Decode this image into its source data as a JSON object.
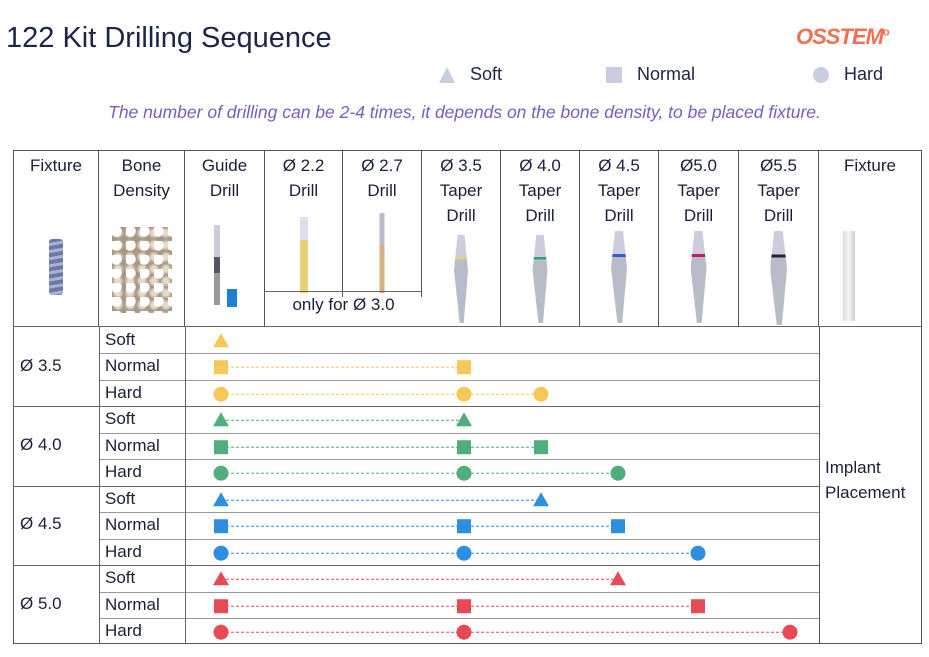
{
  "title": "122 Kit Drilling Sequence",
  "logo": "OSSTEM",
  "legend": [
    {
      "shape": "triangle",
      "label": "Soft"
    },
    {
      "shape": "square",
      "label": "Normal"
    },
    {
      "shape": "circle",
      "label": "Hard"
    }
  ],
  "legend_color": "#c8cde0",
  "note": "The number of drilling can be 2-4 times, it depends on the bone density, to be placed fixture.",
  "header": {
    "fixture": "Fixture",
    "bone": [
      "Bone",
      "Density"
    ],
    "guide": [
      "Guide",
      "Drill"
    ],
    "d22": [
      "Ø 2.2",
      "Drill"
    ],
    "d27": [
      "Ø 2.7",
      "Drill"
    ],
    "only": "only for Ø 3.0",
    "d35": [
      "Ø 3.5",
      "Taper",
      "Drill"
    ],
    "d40": [
      "Ø 4.0",
      "Taper",
      "Drill"
    ],
    "d45": [
      "Ø 4.5",
      "Taper",
      "Drill"
    ],
    "d50": [
      "Ø5.0",
      "Taper",
      "Drill"
    ],
    "d55": [
      "Ø5.5",
      "Taper",
      "Drill"
    ],
    "fixture2": "Fixture"
  },
  "placement": [
    "Implant",
    "Placement"
  ],
  "groups": [
    {
      "label": "Ø 3.5",
      "color": "#f6c85a",
      "rows": [
        {
          "density": "Soft",
          "drills": [
            "guide"
          ]
        },
        {
          "density": "Normal",
          "drills": [
            "guide",
            "3.5"
          ]
        },
        {
          "density": "Hard",
          "drills": [
            "guide",
            "3.5",
            "4.0"
          ]
        }
      ]
    },
    {
      "label": "Ø 4.0",
      "color": "#4fae7c",
      "rows": [
        {
          "density": "Soft",
          "drills": [
            "guide",
            "3.5"
          ]
        },
        {
          "density": "Normal",
          "drills": [
            "guide",
            "3.5",
            "4.0"
          ]
        },
        {
          "density": "Hard",
          "drills": [
            "guide",
            "3.5",
            "4.5"
          ]
        }
      ]
    },
    {
      "label": "Ø 4.5",
      "color": "#2e8ee0",
      "rows": [
        {
          "density": "Soft",
          "drills": [
            "guide",
            "4.0"
          ]
        },
        {
          "density": "Normal",
          "drills": [
            "guide",
            "3.5",
            "4.5"
          ]
        },
        {
          "density": "Hard",
          "drills": [
            "guide",
            "3.5",
            "5.0"
          ]
        }
      ]
    },
    {
      "label": "Ø 5.0",
      "color": "#e84a55",
      "rows": [
        {
          "density": "Soft",
          "drills": [
            "guide",
            "4.5"
          ]
        },
        {
          "density": "Normal",
          "drills": [
            "guide",
            "3.5",
            "5.0"
          ]
        },
        {
          "density": "Hard",
          "drills": [
            "guide",
            "3.5",
            "5.5"
          ]
        }
      ]
    }
  ]
}
